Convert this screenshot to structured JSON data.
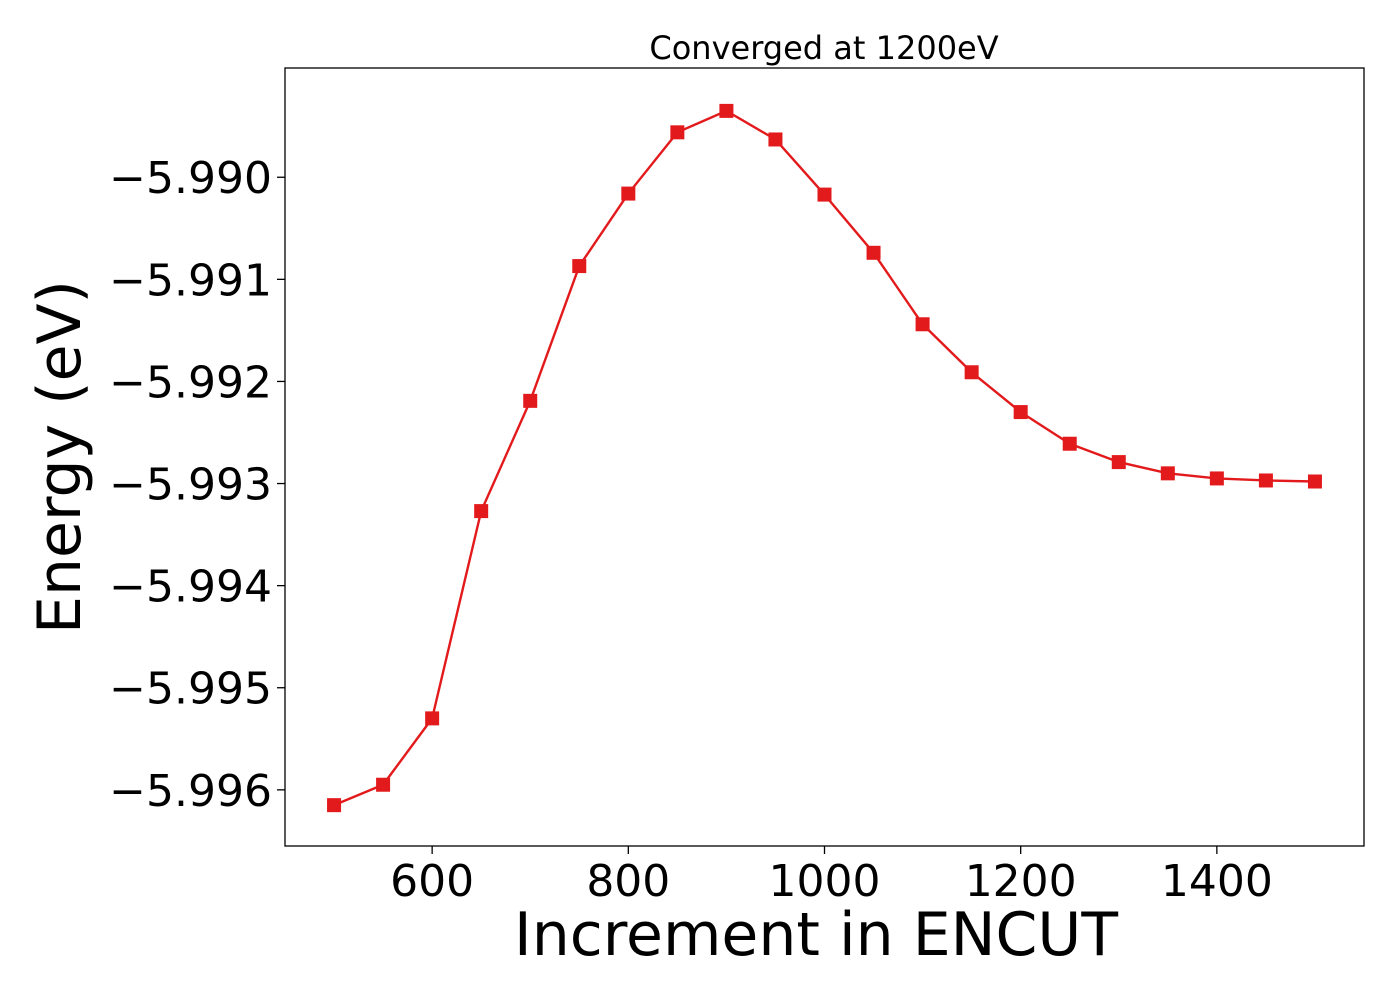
{
  "chart_data": {
    "type": "line",
    "title": "Converged at 1200eV",
    "xlabel": "Increment in ENCUT",
    "ylabel": "Energy (eV)",
    "xlim": [
      450,
      1550
    ],
    "ylim": [
      -5.99655,
      -5.98893
    ],
    "xticks": [
      600,
      800,
      1000,
      1200,
      1400
    ],
    "yticks": [
      -5.996,
      -5.995,
      -5.994,
      -5.993,
      -5.992,
      -5.991,
      -5.99
    ],
    "ytick_labels": [
      "−5.996",
      "−5.995",
      "−5.994",
      "−5.993",
      "−5.992",
      "−5.991",
      "−5.990"
    ],
    "grid": false,
    "series": [
      {
        "color": "#e31a1c",
        "marker": "square",
        "x": [
          500,
          550,
          600,
          650,
          700,
          750,
          800,
          850,
          900,
          950,
          1000,
          1050,
          1100,
          1150,
          1200,
          1250,
          1300,
          1350,
          1400,
          1450,
          1500
        ],
        "y": [
          -5.99615,
          -5.99595,
          -5.9953,
          -5.99327,
          -5.99219,
          -5.99087,
          -5.99016,
          -5.98956,
          -5.98935,
          -5.98963,
          -5.99017,
          -5.99074,
          -5.99144,
          -5.99191,
          -5.9923,
          -5.99261,
          -5.99279,
          -5.9929,
          -5.99295,
          -5.99297,
          -5.99298
        ]
      }
    ]
  }
}
